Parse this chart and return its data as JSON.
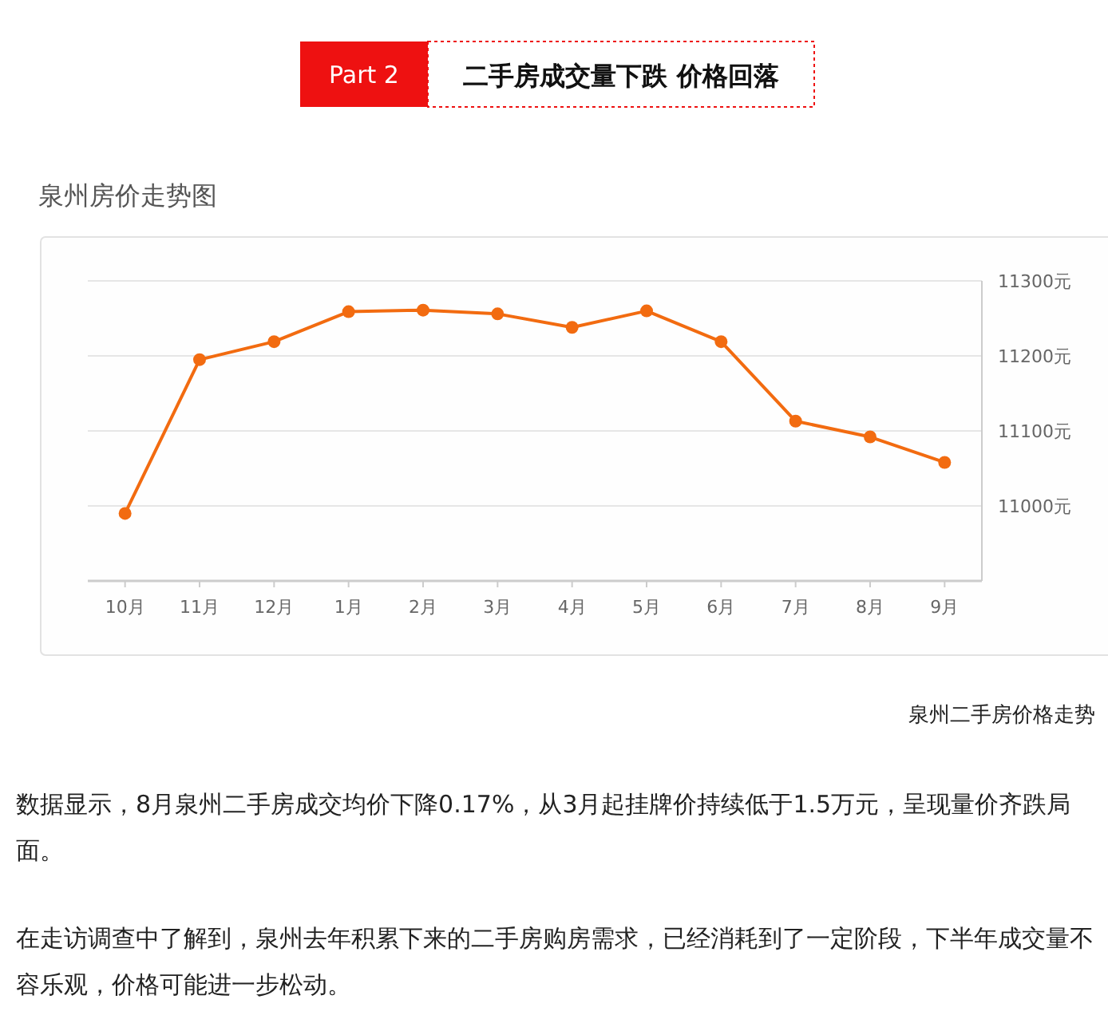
{
  "chart_data": {
    "type": "line",
    "title": "泉州房价走势图",
    "categories": [
      "10月",
      "11月",
      "12月",
      "1月",
      "2月",
      "3月",
      "4月",
      "5月",
      "6月",
      "7月",
      "8月",
      "9月"
    ],
    "series": [
      {
        "color": "#f26b10",
        "values": [
          10990,
          11195,
          11219,
          11259,
          11261,
          11256,
          11238,
          11260,
          11219,
          11113,
          11092,
          11058
        ]
      }
    ],
    "ylim": [
      10900,
      11300
    ],
    "yticks": [
      {
        "value": 11000,
        "label": "11000元"
      },
      {
        "value": 11100,
        "label": "11100元"
      },
      {
        "value": 11200,
        "label": "11200元"
      },
      {
        "value": 11300,
        "label": "11300元"
      }
    ],
    "grid": "y",
    "marker": "circle",
    "line_style": "solid",
    "annotations": [
      "Part 2",
      "二手房成交量下跌 价格回落",
      "泉州二手房价格走势",
      "数据显示，8月泉州二手房成交均价下降0.17%，从3月起挂牌价持续低于1.5万元，呈现量价齐跌局面。",
      "在走访调查中了解到，泉州去年积累下来的二手房购房需求，已经消耗到了一定阶段，下半年成交量不容乐观，价格可能进一步松动。"
    ]
  }
}
